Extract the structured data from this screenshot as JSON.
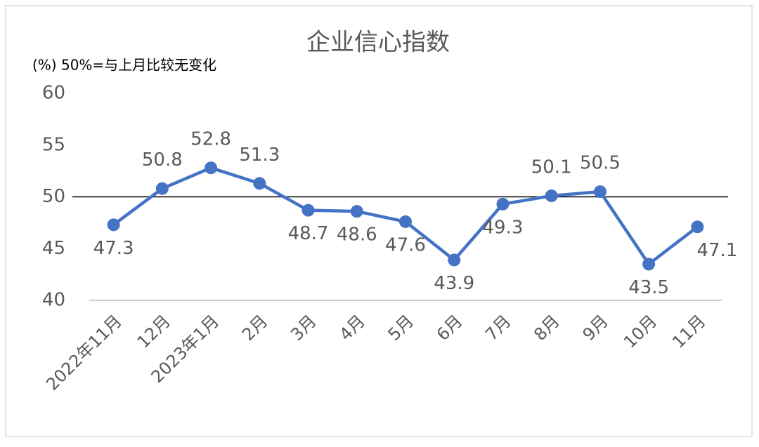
{
  "chart_data": {
    "type": "line",
    "title": "企业信心指数",
    "subtitle": "(%)  50%=与上月比较无变化",
    "categories": [
      "2022年11月",
      "12月",
      "2023年1月",
      "2月",
      "3月",
      "4月",
      "5月",
      "6月",
      "7月",
      "8月",
      "9月",
      "10月",
      "11月"
    ],
    "series": [
      {
        "name": "企业信心指数",
        "color": "#4472c4",
        "values": [
          47.3,
          50.8,
          52.8,
          51.3,
          48.7,
          48.6,
          47.6,
          43.9,
          49.3,
          50.1,
          50.5,
          43.5,
          47.1
        ]
      }
    ],
    "ylim": [
      40,
      60
    ],
    "yticks": [
      40,
      45,
      50,
      55,
      60
    ],
    "reference_line": 50,
    "grid": false,
    "data_labels": true
  }
}
